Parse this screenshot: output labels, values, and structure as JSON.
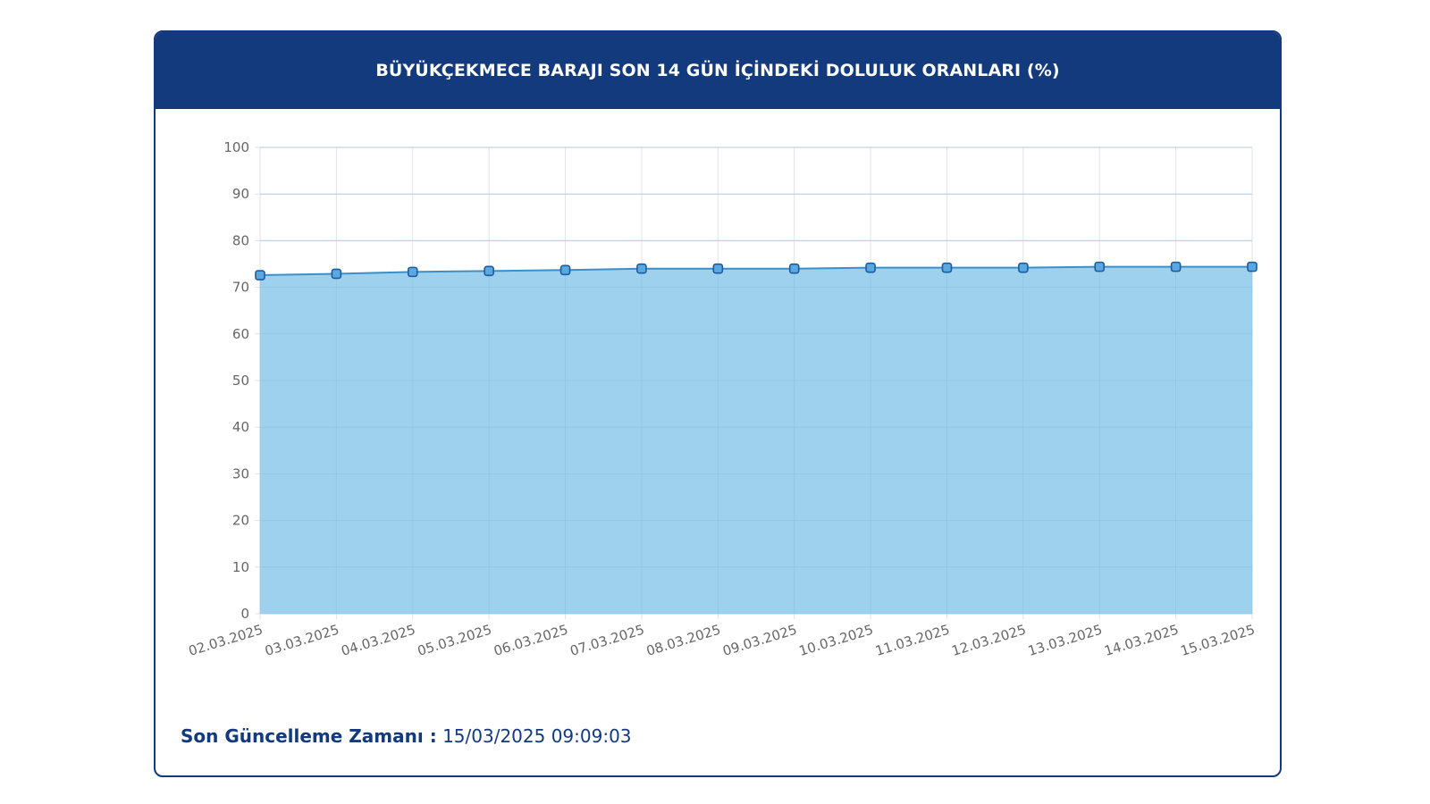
{
  "header": {
    "title": "BÜYÜKÇEKMECE BARAJI SON 14 GÜN İÇİNDEKİ DOLULUK ORANLARI (%)"
  },
  "footer": {
    "label": "Son Güncelleme Zamanı :",
    "value": "15/03/2025 09:09:03"
  },
  "colors": {
    "header_bg": "#123a7c",
    "area_fill": "#9ed1ee",
    "line": "#3d8fc8",
    "marker_border": "#1e5aa0",
    "marker_fill": "#5aa8e0",
    "grid": "#e3e3e3"
  },
  "chart_data": {
    "type": "area",
    "title": "BÜYÜKÇEKMECE BARAJI SON 14 GÜN İÇİNDEKİ DOLULUK ORANLARI (%)",
    "categories": [
      "02.03.2025",
      "03.03.2025",
      "04.03.2025",
      "05.03.2025",
      "06.03.2025",
      "07.03.2025",
      "08.03.2025",
      "09.03.2025",
      "10.03.2025",
      "11.03.2025",
      "12.03.2025",
      "13.03.2025",
      "14.03.2025",
      "15.03.2025"
    ],
    "values": [
      72.6,
      72.9,
      73.3,
      73.5,
      73.7,
      74.0,
      74.0,
      74.0,
      74.2,
      74.2,
      74.2,
      74.4,
      74.4,
      74.4
    ],
    "ylim": [
      0,
      100
    ],
    "yticks": [
      0,
      10,
      20,
      30,
      40,
      50,
      60,
      70,
      80,
      90,
      100
    ],
    "xlabel": "",
    "ylabel": "",
    "grid": true,
    "legend": false
  }
}
